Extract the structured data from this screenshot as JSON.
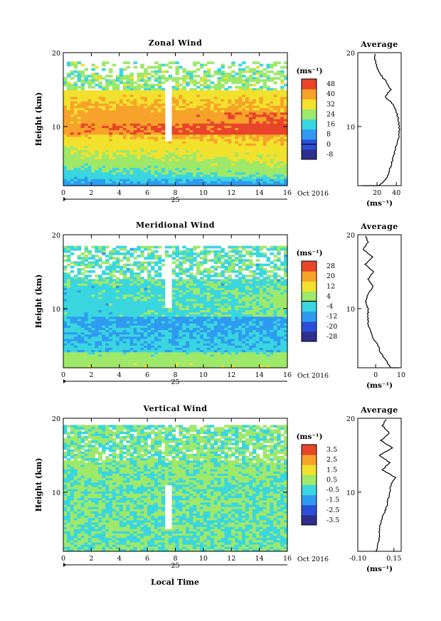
{
  "chart_data": [
    {
      "type": "heatmap",
      "title": "Zonal Wind",
      "ylabel": "Height (km)",
      "xticks": [
        "0",
        "2",
        "4",
        "6",
        "8",
        "10",
        "12",
        "14",
        "16"
      ],
      "yticks": [
        "20",
        "10"
      ],
      "date_day": "25",
      "date_suffix": "Oct 2016",
      "unit": "(ms⁻¹)",
      "colorbar_ticks": [
        "48",
        "40",
        "32",
        "24",
        "16",
        "8",
        "0",
        "-8"
      ],
      "colorbar_range": [
        -12,
        52
      ],
      "avg_title": "Average",
      "avg_xticks": [
        "20",
        "40"
      ],
      "avg_xrange": [
        0,
        45
      ],
      "avg_unit": "(ms⁻¹)",
      "profile": {
        "heights": [
          0.5,
          1,
          1.5,
          2,
          2.5,
          3,
          4,
          5,
          6,
          7,
          8,
          9,
          10,
          11,
          12,
          13,
          14,
          15,
          16,
          17,
          18,
          19,
          20
        ],
        "values": [
          5,
          12,
          18,
          22,
          26,
          30,
          33,
          35,
          37,
          39,
          41,
          43,
          43,
          42,
          40,
          37,
          28,
          34,
          30,
          24,
          20,
          18,
          18
        ]
      }
    },
    {
      "type": "heatmap",
      "title": "Meridional Wind",
      "ylabel": "Height (km)",
      "xticks": [
        "0",
        "2",
        "4",
        "6",
        "8",
        "10",
        "12",
        "14",
        "16"
      ],
      "yticks": [
        "20",
        "10"
      ],
      "date_day": "25",
      "date_suffix": "Oct 2016",
      "unit": "(ms⁻¹)",
      "colorbar_ticks": [
        "28",
        "20",
        "12",
        "4",
        "-4",
        "-12",
        "-20",
        "-28"
      ],
      "colorbar_range": [
        -32,
        32
      ],
      "avg_title": "Average",
      "avg_xticks": [
        "0",
        "10"
      ],
      "avg_xrange": [
        -7,
        10
      ],
      "avg_unit": "(ms⁻¹)",
      "profile": {
        "heights": [
          0.5,
          1,
          1.5,
          2,
          3,
          4,
          5,
          6,
          7,
          8,
          9,
          10,
          11,
          12,
          13,
          14,
          15,
          16,
          17,
          18,
          19,
          20
        ],
        "values": [
          9,
          8,
          7,
          6,
          4,
          2,
          1,
          -1,
          -2,
          -3,
          -3,
          -3,
          -4,
          -3,
          -1,
          -3,
          -1,
          -4,
          -1,
          -5,
          -3,
          -4
        ]
      }
    },
    {
      "type": "heatmap",
      "title": "Vertical Wind",
      "ylabel": "Height (km)",
      "xticks": [
        "0",
        "2",
        "4",
        "6",
        "8",
        "10",
        "12",
        "14",
        "16"
      ],
      "yticks": [
        "20",
        "10"
      ],
      "date_day": "25",
      "date_suffix": "Oct 2016",
      "unit": "(ms⁻¹)",
      "colorbar_ticks": [
        "3.5",
        "2.5",
        "1.5",
        "0.5",
        "-0.5",
        "-1.5",
        "-2.5",
        "-3.5"
      ],
      "colorbar_range": [
        -4,
        4
      ],
      "avg_title": "Average",
      "avg_xticks": [
        "-0.10",
        "0.15"
      ],
      "avg_xrange": [
        -0.1,
        0.2
      ],
      "avg_unit": "(ms⁻¹)",
      "profile": {
        "heights": [
          0.5,
          1,
          2,
          3,
          4,
          5,
          6,
          7,
          8,
          9,
          10,
          11,
          12,
          13,
          14,
          15,
          16,
          17,
          18,
          19,
          20
        ],
        "values": [
          0.02,
          0.03,
          0.03,
          0.04,
          0.05,
          0.05,
          0.06,
          0.08,
          0.1,
          0.11,
          0.12,
          0.13,
          0.16,
          0.07,
          0.12,
          0.05,
          0.14,
          0.06,
          0.12,
          0.07,
          0.1
        ]
      }
    }
  ],
  "xlabel": "Local Time"
}
